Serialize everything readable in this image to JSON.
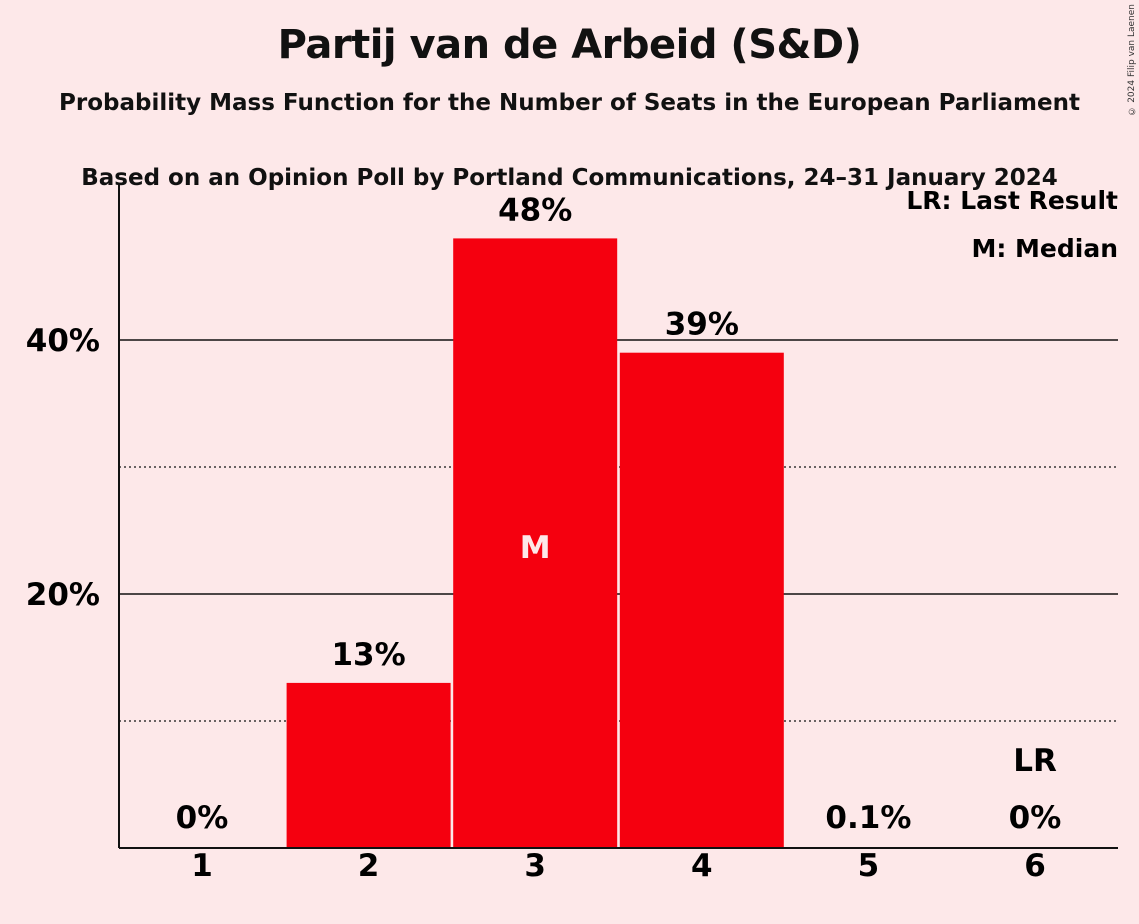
{
  "header": {
    "title": "Partij van de Arbeid (S&D)",
    "subtitle1": "Probability Mass Function for the Number of Seats in the European Parliament",
    "subtitle2": "Based on an Opinion Poll by Portland Communications, 24–31 January 2024",
    "copyright": "© 2024 Filip van Laenen"
  },
  "legend": {
    "lr": "LR: Last Result",
    "m": "M: Median",
    "placement": "top-right"
  },
  "colors": {
    "bar": "#F5000F",
    "background": "#FDE8E9"
  },
  "chart_data": {
    "type": "bar",
    "title": "Partij van de Arbeid (S&D)",
    "xlabel": "",
    "ylabel": "",
    "categories": [
      "1",
      "2",
      "3",
      "4",
      "5",
      "6"
    ],
    "values": [
      0,
      13,
      48,
      39,
      0.1,
      0
    ],
    "data_labels": [
      "0%",
      "13%",
      "48%",
      "39%",
      "0.1%",
      "0%"
    ],
    "ylim": [
      0,
      52
    ],
    "yticks": [
      {
        "value": 20,
        "label": "20%"
      },
      {
        "value": 40,
        "label": "40%"
      }
    ],
    "minor_gridlines": [
      10,
      30
    ],
    "median_category": "3",
    "median_marker": "M",
    "last_result_category": "6",
    "last_result_marker": "LR"
  }
}
